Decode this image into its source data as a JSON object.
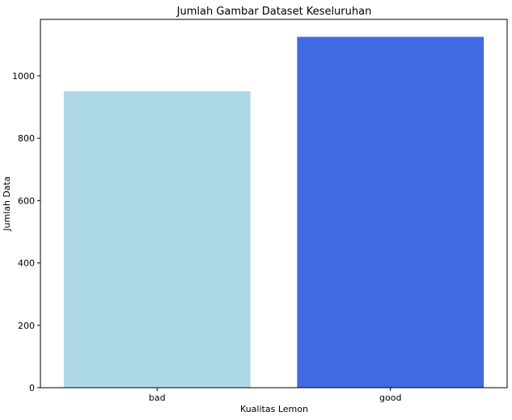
{
  "chart_data": {
    "type": "bar",
    "title": "Jumlah Gambar Dataset Keseluruhan",
    "xlabel": "Kualitas Lemon",
    "ylabel": "Jumlah Data",
    "categories": [
      "bad",
      "good"
    ],
    "values": [
      951,
      1125
    ],
    "bar_colors": [
      "#add8e6",
      "#4169e1"
    ],
    "ylim": [
      0,
      1181
    ],
    "yticks": [
      0,
      200,
      400,
      600,
      800,
      1000
    ],
    "grid": false,
    "legend": "none"
  }
}
